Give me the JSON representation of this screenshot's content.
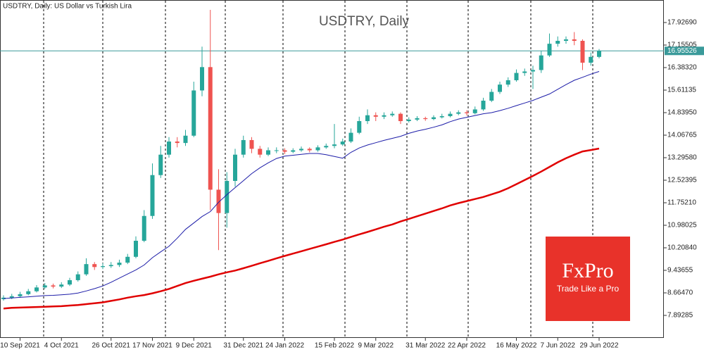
{
  "chart_data": {
    "type": "candlestick",
    "header_text": "USDTRY, Daily:  US Dollar vs Turkish Lira",
    "title": "USDTRY, Daily",
    "logo_title": "FxPro",
    "logo_tagline": "Trade Like a Pro",
    "categories": [
      null,
      null,
      "10 Sep 2021",
      null,
      null,
      null,
      null,
      "4 Oct 2021",
      null,
      null,
      null,
      null,
      null,
      "26 Oct 2021",
      null,
      null,
      null,
      null,
      "17 Nov 2021",
      null,
      null,
      null,
      null,
      "9 Dec 2021",
      null,
      null,
      null,
      null,
      null,
      "31 Dec 2021",
      null,
      null,
      null,
      null,
      "24 Jan 2022",
      null,
      null,
      null,
      null,
      null,
      "15 Feb 2022",
      null,
      null,
      null,
      null,
      "9 Mar 2022",
      null,
      null,
      null,
      null,
      null,
      "31 Mar 2022",
      null,
      null,
      null,
      null,
      "22 Apr 2022",
      null,
      null,
      null,
      null,
      null,
      "16 May 2022",
      null,
      null,
      null,
      null,
      "7 Jun 2022",
      null,
      null,
      null,
      null,
      "29 Jun 2022"
    ],
    "open": [
      8.45,
      8.5,
      8.55,
      8.62,
      8.72,
      8.85,
      8.92,
      8.88,
      8.95,
      9.1,
      9.3,
      9.65,
      9.55,
      9.58,
      9.62,
      9.7,
      9.9,
      10.45,
      11.3,
      12.7,
      13.4,
      13.85,
      13.8,
      14.05,
      15.6,
      16.4,
      12.2,
      11.4,
      12.5,
      13.4,
      13.9,
      13.6,
      13.4,
      13.55,
      13.55,
      13.5,
      13.55,
      13.6,
      13.55,
      13.65,
      13.7,
      13.75,
      13.85,
      14.15,
      14.55,
      14.75,
      14.7,
      14.75,
      14.8,
      14.55,
      14.6,
      14.65,
      14.62,
      14.68,
      14.72,
      14.8,
      14.85,
      14.82,
      14.95,
      15.25,
      15.55,
      15.8,
      15.95,
      16.2,
      16.25,
      16.3,
      16.8,
      17.2,
      17.3,
      17.35,
      17.3,
      16.55,
      16.75
    ],
    "high": [
      8.58,
      8.63,
      8.7,
      8.8,
      8.93,
      9.0,
      8.98,
      9.03,
      9.18,
      9.4,
      9.85,
      9.72,
      9.68,
      9.72,
      9.8,
      10.0,
      10.6,
      11.5,
      13.1,
      13.7,
      14.0,
      14.0,
      14.25,
      15.9,
      17.1,
      18.36,
      12.9,
      12.8,
      13.6,
      14.05,
      14.0,
      13.7,
      13.65,
      13.65,
      13.62,
      13.62,
      13.68,
      13.65,
      13.72,
      13.78,
      14.45,
      13.95,
      14.3,
      14.7,
      14.95,
      14.85,
      14.85,
      14.88,
      14.85,
      14.68,
      14.72,
      14.7,
      14.75,
      14.8,
      14.88,
      14.92,
      14.92,
      15.05,
      15.35,
      15.65,
      15.9,
      16.05,
      16.32,
      16.35,
      16.45,
      16.95,
      17.55,
      17.45,
      17.45,
      17.6,
      17.35,
      16.9,
      17.02
    ],
    "low": [
      8.4,
      8.45,
      8.5,
      8.58,
      8.68,
      8.8,
      8.82,
      8.83,
      8.9,
      9.05,
      9.25,
      9.45,
      9.48,
      9.52,
      9.55,
      9.65,
      9.85,
      10.4,
      11.2,
      12.6,
      13.3,
      13.65,
      13.7,
      14.0,
      15.4,
      11.5,
      10.13,
      10.9,
      12.3,
      13.3,
      13.45,
      13.3,
      13.35,
      13.45,
      13.42,
      13.45,
      13.5,
      13.48,
      13.5,
      13.6,
      13.62,
      13.7,
      13.8,
      14.1,
      14.45,
      14.55,
      14.62,
      14.7,
      14.45,
      14.5,
      14.55,
      14.56,
      14.58,
      14.64,
      14.68,
      14.75,
      14.74,
      14.78,
      14.9,
      15.2,
      15.48,
      15.72,
      15.9,
      16.1,
      15.65,
      16.2,
      16.75,
      17.1,
      17.2,
      17.15,
      16.3,
      16.45,
      16.7
    ],
    "close": [
      8.5,
      8.55,
      8.62,
      8.72,
      8.85,
      8.92,
      8.88,
      8.95,
      9.1,
      9.3,
      9.65,
      9.55,
      9.58,
      9.62,
      9.7,
      9.9,
      10.45,
      11.3,
      12.7,
      13.4,
      13.85,
      13.8,
      14.05,
      15.6,
      16.4,
      12.2,
      11.4,
      12.5,
      13.4,
      13.9,
      13.6,
      13.4,
      13.55,
      13.55,
      13.5,
      13.55,
      13.6,
      13.55,
      13.65,
      13.7,
      13.75,
      13.85,
      14.15,
      14.55,
      14.75,
      14.7,
      14.75,
      14.8,
      14.55,
      14.6,
      14.65,
      14.62,
      14.68,
      14.72,
      14.8,
      14.85,
      14.82,
      14.95,
      15.25,
      15.55,
      15.8,
      15.95,
      16.2,
      16.25,
      16.3,
      16.8,
      17.2,
      17.3,
      17.35,
      17.3,
      16.55,
      16.75,
      16.95526
    ],
    "up_color": "#26a69a",
    "down_color": "#ef5350",
    "series": [
      {
        "color": "#1c1ca8",
        "values": [
          8.47,
          8.49,
          8.51,
          8.53,
          8.55,
          8.57,
          8.58,
          8.6,
          8.62,
          8.66,
          8.73,
          8.81,
          8.9,
          9.03,
          9.17,
          9.31,
          9.45,
          9.62,
          9.87,
          10.07,
          10.26,
          10.54,
          10.84,
          11.06,
          11.28,
          11.45,
          11.77,
          12.03,
          12.27,
          12.51,
          12.75,
          12.95,
          13.12,
          13.27,
          13.35,
          13.38,
          13.41,
          13.44,
          13.44,
          13.4,
          13.34,
          13.28,
          13.48,
          13.63,
          13.73,
          13.81,
          13.89,
          13.96,
          14.03,
          14.13,
          14.21,
          14.27,
          14.34,
          14.42,
          14.53,
          14.62,
          14.68,
          14.74,
          14.8,
          14.84,
          14.91,
          14.99,
          15.08,
          15.17,
          15.26,
          15.37,
          15.48,
          15.64,
          15.8,
          15.95,
          16.05,
          16.16,
          16.25
        ]
      },
      {
        "color": "#e00000",
        "values": [
          8.13,
          8.15,
          8.16,
          8.17,
          8.18,
          8.19,
          8.2,
          8.21,
          8.23,
          8.25,
          8.28,
          8.31,
          8.34,
          8.39,
          8.44,
          8.5,
          8.55,
          8.59,
          8.65,
          8.72,
          8.8,
          8.9,
          9.0,
          9.08,
          9.15,
          9.22,
          9.3,
          9.37,
          9.43,
          9.51,
          9.59,
          9.68,
          9.76,
          9.85,
          9.93,
          10.01,
          10.09,
          10.17,
          10.25,
          10.33,
          10.41,
          10.49,
          10.58,
          10.67,
          10.75,
          10.84,
          10.93,
          11.01,
          11.11,
          11.2,
          11.29,
          11.38,
          11.47,
          11.56,
          11.66,
          11.74,
          11.81,
          11.88,
          11.95,
          12.04,
          12.13,
          12.25,
          12.39,
          12.53,
          12.67,
          12.82,
          12.98,
          13.14,
          13.28,
          13.4,
          13.51,
          13.56,
          13.61
        ]
      }
    ],
    "current_price": {
      "value": 16.95526,
      "label": "16.95526"
    },
    "ylim": [
      7.121,
      18.699
    ],
    "yticks": [
      {
        "value": 17.9269,
        "label": "17.92690"
      },
      {
        "value": 17.15505,
        "label": "17.15505"
      },
      {
        "value": 16.3832,
        "label": "16.38320"
      },
      {
        "value": 15.61135,
        "label": "15.61135"
      },
      {
        "value": 14.8395,
        "label": "14.83950"
      },
      {
        "value": 14.06765,
        "label": "14.06765"
      },
      {
        "value": 13.2958,
        "label": "13.29580"
      },
      {
        "value": 12.52395,
        "label": "12.52395"
      },
      {
        "value": 11.7521,
        "label": "11.75210"
      },
      {
        "value": 10.98025,
        "label": "10.98025"
      },
      {
        "value": 10.2084,
        "label": "10.20840"
      },
      {
        "value": 9.43655,
        "label": "9.43655"
      },
      {
        "value": 8.6647,
        "label": "8.66470"
      },
      {
        "value": 7.89285,
        "label": "7.89285"
      }
    ]
  }
}
